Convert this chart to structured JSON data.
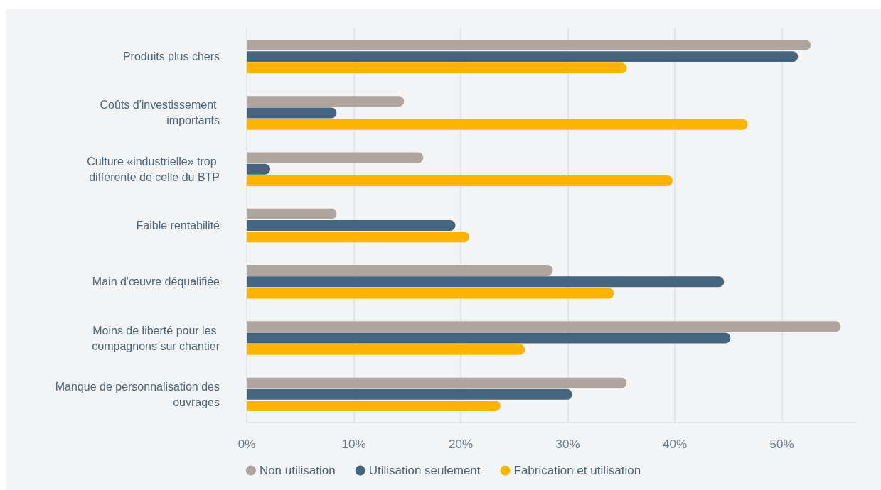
{
  "chart_data": {
    "type": "bar",
    "orientation": "horizontal",
    "categories": [
      "Produits plus chers",
      "Coûts d'investissement importants",
      "Culture «industrielle» trop différente de celle du BTP",
      "Faible rentabilité",
      "Main d'œuvre déqualifiée",
      "Moins de liberté pour les compagnons sur chantier",
      "Manque de personnalisation des ouvrages"
    ],
    "series": [
      {
        "name": "Non utilisation",
        "color": "#b0a49e",
        "values": [
          52.7,
          14.7,
          16.5,
          8.4,
          28.6,
          55.5,
          35.5
        ]
      },
      {
        "name": "Utilisation seulement",
        "color": "#45657f",
        "values": [
          51.5,
          8.4,
          2.2,
          19.5,
          44.6,
          45.2,
          30.4
        ]
      },
      {
        "name": "Fabrication et utilisation",
        "color": "#fbb400",
        "values": [
          35.5,
          46.8,
          39.8,
          20.8,
          34.3,
          26.0,
          23.7
        ]
      }
    ],
    "xlim": [
      0,
      57
    ],
    "xticks": [
      {
        "value": 0,
        "label": "0%"
      },
      {
        "value": 10,
        "label": "10%"
      },
      {
        "value": 20,
        "label": "20%"
      },
      {
        "value": 30,
        "label": "30%"
      },
      {
        "value": 40,
        "label": "40%"
      },
      {
        "value": 50,
        "label": "50%"
      }
    ],
    "grid": "x",
    "legend": "bottom"
  }
}
